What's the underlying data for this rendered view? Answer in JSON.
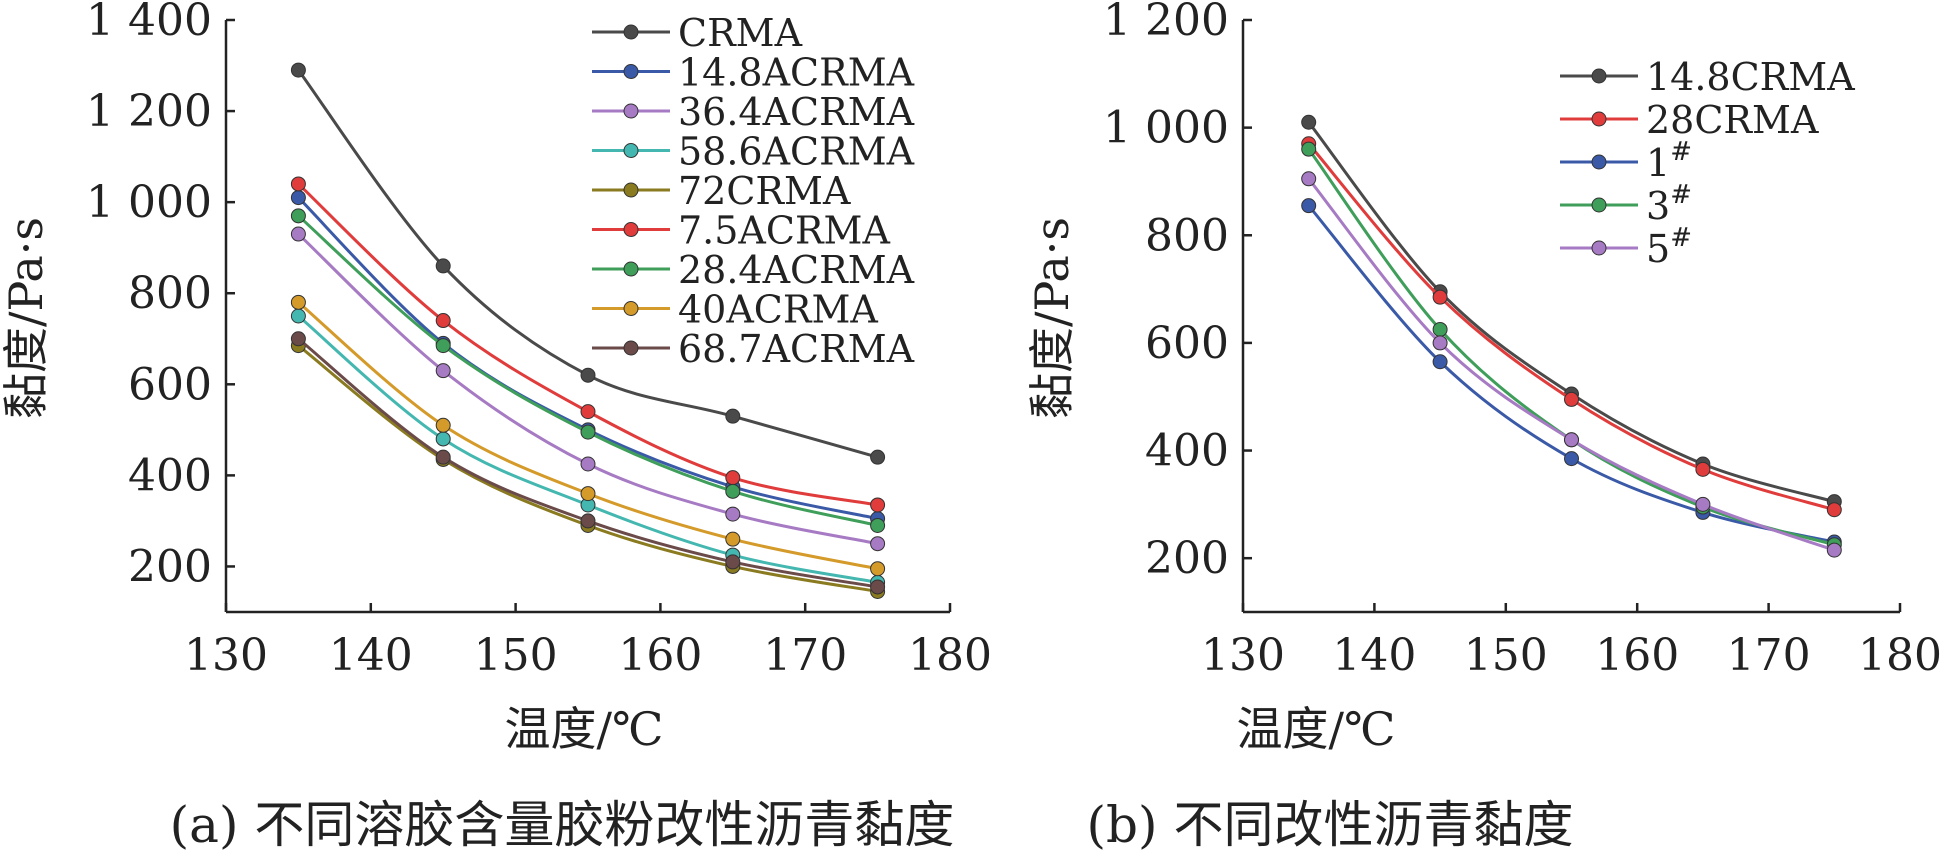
{
  "chart_data": [
    {
      "type": "line",
      "caption": "(a) 不同溶胶含量胶粉改性沥青黏度",
      "xlabel": "温度/℃",
      "ylabel": "黏度/Pa·s",
      "xlim": [
        130,
        180
      ],
      "ylim": [
        100,
        1400
      ],
      "xticks": [
        130,
        140,
        150,
        160,
        170,
        180
      ],
      "xtick_labels": [
        "130",
        "140",
        "150",
        "160",
        "170",
        "180"
      ],
      "yticks": [
        200,
        400,
        600,
        800,
        1000,
        1200,
        1400
      ],
      "ytick_labels": [
        "200",
        "400",
        "600",
        "800",
        "1 000",
        "1 200",
        "1 400"
      ],
      "grid": false,
      "legend_position": "top-right",
      "x": [
        135,
        145,
        155,
        165,
        175
      ],
      "series": [
        {
          "name": "CRMA",
          "color": "#4a4a4a",
          "values": [
            1290,
            860,
            620,
            530,
            440
          ]
        },
        {
          "name": "14.8ACRMA",
          "color": "#3a5aa8",
          "values": [
            1010,
            690,
            500,
            375,
            305
          ]
        },
        {
          "name": "36.4ACRMA",
          "color": "#a77ac4",
          "values": [
            930,
            630,
            425,
            315,
            250
          ]
        },
        {
          "name": "58.6ACRMA",
          "color": "#44b8b0",
          "values": [
            750,
            480,
            335,
            225,
            165
          ]
        },
        {
          "name": "72CRMA",
          "color": "#8a7a20",
          "values": [
            685,
            435,
            290,
            200,
            145
          ]
        },
        {
          "name": "7.5ACRMA",
          "color": "#e03c3c",
          "values": [
            1040,
            740,
            540,
            395,
            335
          ]
        },
        {
          "name": "28.4ACRMA",
          "color": "#3e9e5a",
          "values": [
            970,
            685,
            495,
            365,
            290
          ]
        },
        {
          "name": "40ACRMA",
          "color": "#d49a2a",
          "values": [
            780,
            510,
            360,
            260,
            195
          ]
        },
        {
          "name": "68.7ACRMA",
          "color": "#6b4a4a",
          "values": [
            700,
            440,
            300,
            210,
            155
          ]
        }
      ]
    },
    {
      "type": "line",
      "caption": "(b) 不同改性沥青黏度",
      "xlabel": "温度/℃",
      "ylabel": "黏度/Pa·s",
      "xlim": [
        130,
        180
      ],
      "ylim": [
        100,
        1200
      ],
      "xticks": [
        130,
        140,
        150,
        160,
        170,
        180
      ],
      "xtick_labels": [
        "130",
        "140",
        "150",
        "160",
        "170",
        "180"
      ],
      "yticks": [
        200,
        400,
        600,
        800,
        1000,
        1200
      ],
      "ytick_labels": [
        "200",
        "400",
        "600",
        "800",
        "1 000",
        "1 200"
      ],
      "grid": false,
      "legend_position": "top-right",
      "x": [
        135,
        145,
        155,
        165,
        175
      ],
      "series": [
        {
          "name": "14.8CRMA",
          "sup": "",
          "color": "#4a4a4a",
          "values": [
            1010,
            695,
            505,
            375,
            305
          ]
        },
        {
          "name": "28CRMA",
          "sup": "",
          "color": "#e03c3c",
          "values": [
            970,
            685,
            495,
            365,
            290
          ]
        },
        {
          "name": "1",
          "sup": "#",
          "color": "#3a5aa8",
          "values": [
            855,
            565,
            385,
            285,
            230
          ]
        },
        {
          "name": "3",
          "sup": "#",
          "color": "#3e9e5a",
          "values": [
            960,
            625,
            420,
            295,
            225
          ]
        },
        {
          "name": "5",
          "sup": "#",
          "color": "#a77ac4",
          "values": [
            905,
            600,
            420,
            300,
            215
          ]
        }
      ]
    }
  ]
}
